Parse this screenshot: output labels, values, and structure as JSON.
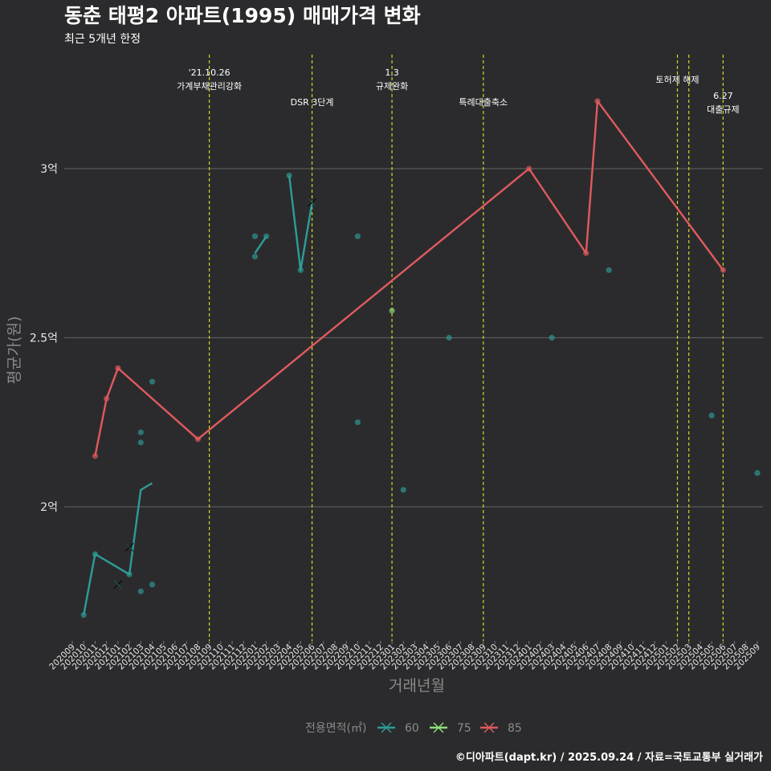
{
  "title": "동춘 태평2 아파트(1995) 매매가격 변화",
  "subtitle": "최근 5개년 한정",
  "caption": "©디아파트(dapt.kr) / 2025.09.24 / 자료=국토교통부 실거래가",
  "colors": {
    "background": "#2b2b2d",
    "grid": "#5a5a5a",
    "event_line": "#d4d42a",
    "s60": "#2e9c98",
    "s75": "#8fe07a",
    "s85": "#e05a5e"
  },
  "chart_data": {
    "type": "line",
    "xlabel": "거래년월",
    "ylabel": "평균가(원)",
    "x_categories": [
      "202009",
      "202010",
      "202011",
      "202012",
      "202101",
      "202102",
      "202103",
      "202104",
      "202105",
      "202106",
      "202107",
      "202108",
      "202109",
      "202110",
      "202111",
      "202112",
      "202201",
      "202202",
      "202203",
      "202204",
      "202205",
      "202206",
      "202207",
      "202208",
      "202209",
      "202210",
      "202211",
      "202212",
      "202301",
      "202302",
      "202303",
      "202304",
      "202305",
      "202306",
      "202307",
      "202308",
      "202309",
      "202310",
      "202311",
      "202312",
      "202401",
      "202402",
      "202403",
      "202404",
      "202405",
      "202406",
      "202407",
      "202408",
      "202409",
      "202410",
      "202411",
      "202412",
      "202501",
      "202502",
      "202503",
      "202504",
      "202505",
      "202506",
      "202507",
      "202508",
      "202509"
    ],
    "y_ticks": [
      {
        "value": 2.0,
        "label": "2억"
      },
      {
        "value": 2.5,
        "label": "2.5억"
      },
      {
        "value": 3.0,
        "label": "3억"
      }
    ],
    "ylim": [
      1.62,
      3.36
    ],
    "y_unit": "억원",
    "legend": {
      "title": "전용면적(㎡)",
      "entries": [
        {
          "key": "s60",
          "label": "60"
        },
        {
          "key": "s75",
          "label": "75"
        },
        {
          "key": "s85",
          "label": "85"
        }
      ],
      "placement": "bottom"
    },
    "events": [
      {
        "x": "202109",
        "label_lines": [
          "'21.10.26",
          "가계부채관리강화"
        ],
        "row": 0
      },
      {
        "x": "202206",
        "label_lines": [
          "DSR 3단계"
        ],
        "row": 1
      },
      {
        "x": "202301",
        "label_lines": [
          "1.3",
          "규제완화"
        ],
        "row": 0
      },
      {
        "x": "202309",
        "label_lines": [
          "특례대출축소"
        ],
        "row": 1
      },
      {
        "x": "202502",
        "label_lines": [
          "토허제 해제"
        ],
        "row": 0
      },
      {
        "x": "202503",
        "label_lines": [],
        "row": 0
      },
      {
        "x": "202506",
        "label_lines": [
          "6.27",
          "대출규제"
        ],
        "row": 1
      }
    ],
    "series": [
      {
        "name": "60",
        "key": "s60",
        "line": [
          {
            "x": "202010",
            "y": 1.68
          },
          {
            "x": "202011",
            "y": 1.86
          },
          {
            "x": "202102",
            "y": 1.8
          },
          {
            "x": "202103",
            "y": 2.05
          },
          {
            "x": "202104",
            "y": 2.07
          }
        ],
        "line2": [
          {
            "x": "202201",
            "y": 2.75
          },
          {
            "x": "202202",
            "y": 2.8
          }
        ],
        "line3": [
          {
            "x": "202204",
            "y": 2.98
          },
          {
            "x": "202205",
            "y": 2.7
          },
          {
            "x": "202206",
            "y": 2.9
          }
        ],
        "points": [
          {
            "x": "202010",
            "y": 1.68
          },
          {
            "x": "202011",
            "y": 1.86
          },
          {
            "x": "202102",
            "y": 1.8
          },
          {
            "x": "202103",
            "y": 2.22
          },
          {
            "x": "202103",
            "y": 2.19
          },
          {
            "x": "202103",
            "y": 1.75
          },
          {
            "x": "202104",
            "y": 2.37
          },
          {
            "x": "202104",
            "y": 1.77
          },
          {
            "x": "202201",
            "y": 2.8
          },
          {
            "x": "202201",
            "y": 2.74
          },
          {
            "x": "202202",
            "y": 2.8
          },
          {
            "x": "202204",
            "y": 2.98
          },
          {
            "x": "202205",
            "y": 2.7
          },
          {
            "x": "202210",
            "y": 2.8
          },
          {
            "x": "202210",
            "y": 2.25
          },
          {
            "x": "202302",
            "y": 2.05
          },
          {
            "x": "202306",
            "y": 2.5
          },
          {
            "x": "202403",
            "y": 2.5
          },
          {
            "x": "202408",
            "y": 2.7
          },
          {
            "x": "202505",
            "y": 2.27
          },
          {
            "x": "202509",
            "y": 2.1
          }
        ],
        "x_markers": [
          {
            "x": "202101",
            "y": 1.77
          },
          {
            "x": "202102",
            "y": 1.88
          },
          {
            "x": "202206",
            "y": 2.9
          }
        ]
      },
      {
        "name": "75",
        "key": "s75",
        "points": [
          {
            "x": "202301",
            "y": 2.58
          }
        ]
      },
      {
        "name": "85",
        "key": "s85",
        "line": [
          {
            "x": "202011",
            "y": 2.15
          },
          {
            "x": "202012",
            "y": 2.32
          },
          {
            "x": "202101",
            "y": 2.41
          },
          {
            "x": "202108",
            "y": 2.2
          },
          {
            "x": "202401",
            "y": 3.0
          },
          {
            "x": "202406",
            "y": 2.75
          },
          {
            "x": "202407",
            "y": 3.2
          },
          {
            "x": "202506",
            "y": 2.7
          }
        ],
        "points": [
          {
            "x": "202011",
            "y": 2.15
          },
          {
            "x": "202012",
            "y": 2.32
          },
          {
            "x": "202101",
            "y": 2.41
          },
          {
            "x": "202108",
            "y": 2.2
          },
          {
            "x": "202401",
            "y": 3.0
          },
          {
            "x": "202406",
            "y": 2.75
          },
          {
            "x": "202407",
            "y": 3.2
          },
          {
            "x": "202506",
            "y": 2.7
          }
        ]
      }
    ]
  }
}
